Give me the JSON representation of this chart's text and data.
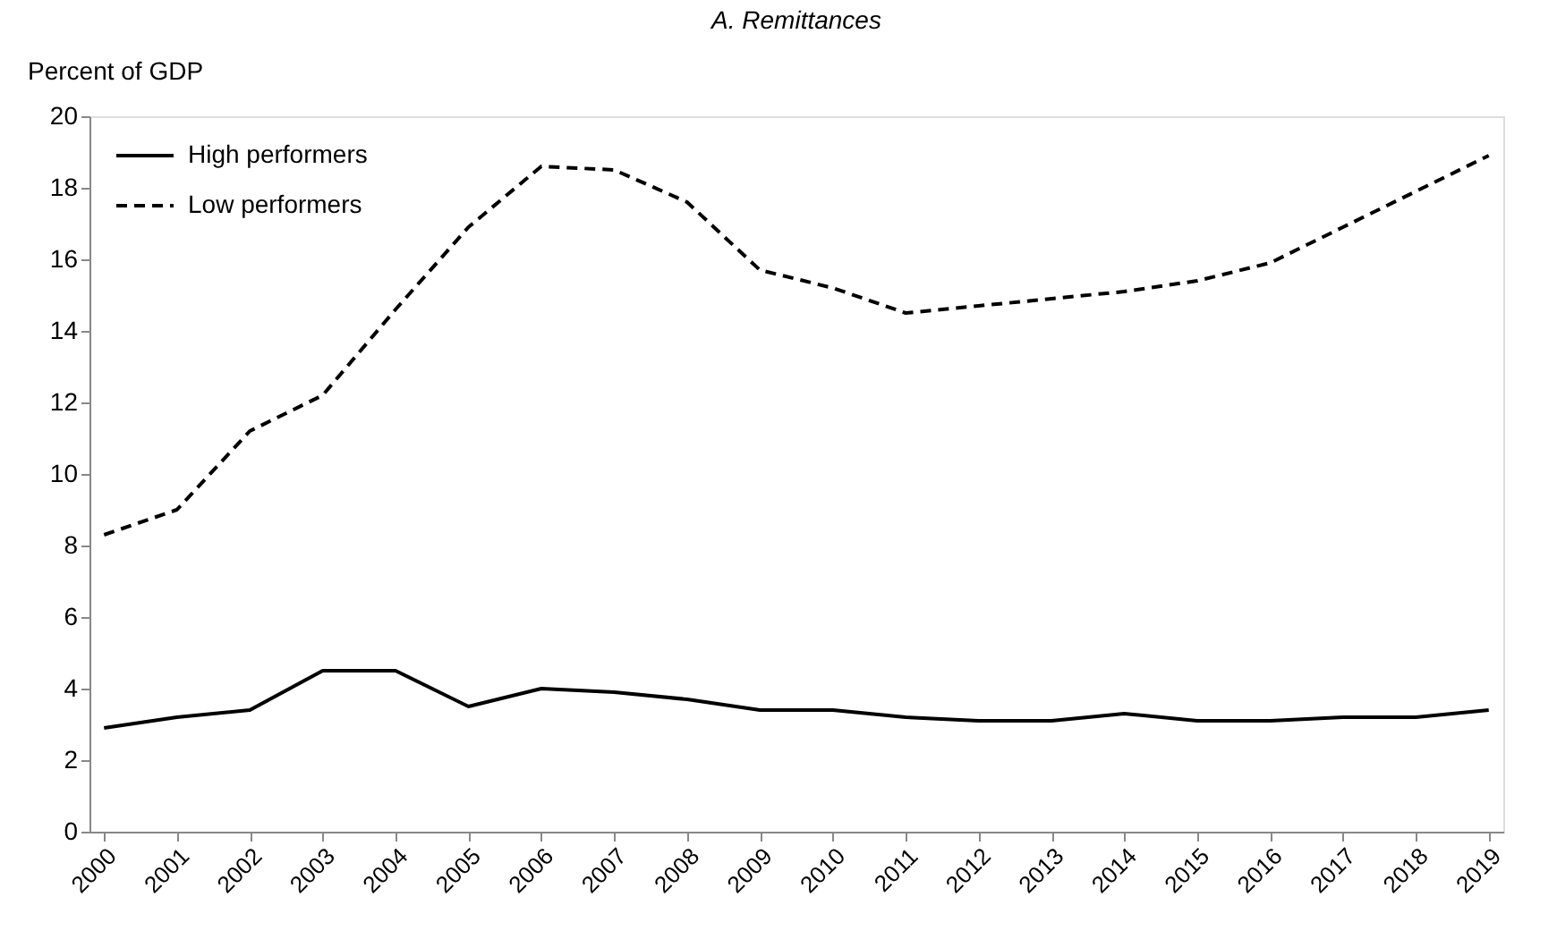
{
  "chart_data": {
    "type": "line",
    "title": "A. Remittances",
    "ylabel": "Percent of GDP",
    "categories": [
      "2000",
      "2001",
      "2002",
      "2003",
      "2004",
      "2005",
      "2006",
      "2007",
      "2008",
      "2009",
      "2010",
      "2011",
      "2012",
      "2013",
      "2014",
      "2015",
      "2016",
      "2017",
      "2018",
      "2019"
    ],
    "series": [
      {
        "name": "High performers",
        "color": "#000000",
        "line_style": "solid",
        "values": [
          2.9,
          3.2,
          3.4,
          4.5,
          4.5,
          3.5,
          4.0,
          3.9,
          3.7,
          3.4,
          3.4,
          3.2,
          3.1,
          3.1,
          3.3,
          3.1,
          3.1,
          3.2,
          3.2,
          3.4
        ]
      },
      {
        "name": "Low performers",
        "color": "#000000",
        "line_style": "dashed",
        "values": [
          8.3,
          9.0,
          11.2,
          12.2,
          14.6,
          16.9,
          18.6,
          18.5,
          17.6,
          15.7,
          15.2,
          14.5,
          14.7,
          14.9,
          15.1,
          15.4,
          15.9,
          16.9,
          17.9,
          18.9
        ]
      }
    ],
    "ylim": [
      0,
      20
    ],
    "yticks": [
      0,
      2,
      4,
      6,
      8,
      10,
      12,
      14,
      16,
      18,
      20
    ],
    "grid": false,
    "legend": "top left",
    "marker": "none"
  }
}
